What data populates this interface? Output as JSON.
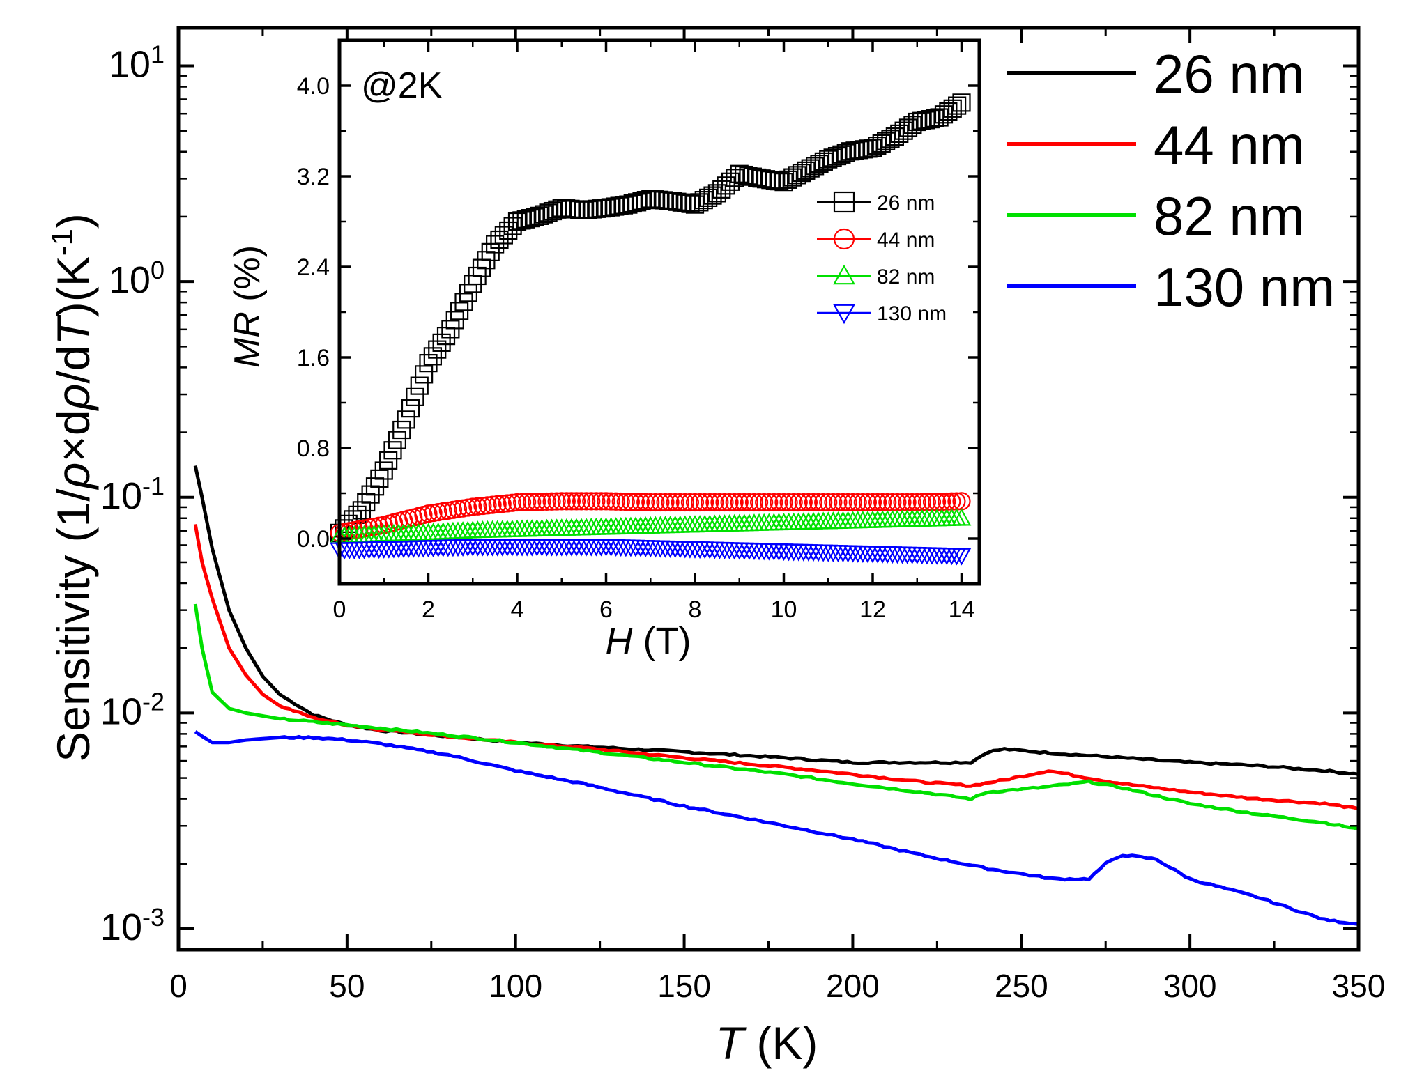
{
  "chart_data": [
    {
      "type": "line",
      "title": "",
      "xlabel": "T (K)",
      "xlabel_var": "T",
      "xlabel_unit": " (K)",
      "ylabel": "Sensitivity (1/ρ×dρ/dT)(K-1)",
      "ylabel_parts": [
        "Sensitivity (1/",
        "ρ",
        "×d",
        "ρ",
        "/d",
        "T",
        ")(K",
        "-1",
        ")"
      ],
      "xlim": [
        0,
        350
      ],
      "ylim": [
        0.0008,
        15
      ],
      "yscale": "log",
      "xticks": [
        0,
        50,
        100,
        150,
        200,
        250,
        300,
        350
      ],
      "yticks": [
        {
          "value": 0.001,
          "base": "10",
          "exp": "-3"
        },
        {
          "value": 0.01,
          "base": "10",
          "exp": "-2"
        },
        {
          "value": 0.1,
          "base": "10",
          "exp": "-1"
        },
        {
          "value": 1,
          "base": "10",
          "exp": "0"
        },
        {
          "value": 10,
          "base": "10",
          "exp": "1"
        }
      ],
      "legend_position": "top-right (outside plot)",
      "series": [
        {
          "name": "26 nm",
          "color": "#000000",
          "x": [
            5,
            7,
            10,
            15,
            20,
            25,
            30,
            40,
            50,
            60,
            80,
            100,
            120,
            150,
            180,
            200,
            220,
            235,
            240,
            245,
            260,
            280,
            300,
            320,
            340,
            350
          ],
          "y": [
            0.14,
            0.1,
            0.058,
            0.03,
            0.02,
            0.0148,
            0.0122,
            0.0098,
            0.0088,
            0.0083,
            0.0078,
            0.0073,
            0.007,
            0.0066,
            0.0062,
            0.0059,
            0.0059,
            0.0059,
            0.0066,
            0.0068,
            0.0065,
            0.0062,
            0.0059,
            0.0057,
            0.0054,
            0.0052
          ]
        },
        {
          "name": "44 nm",
          "color": "#ff0000",
          "x": [
            5,
            7,
            10,
            15,
            20,
            25,
            30,
            40,
            50,
            60,
            80,
            100,
            120,
            150,
            180,
            200,
            220,
            235,
            245,
            258,
            270,
            280,
            300,
            320,
            340,
            350
          ],
          "y": [
            0.075,
            0.05,
            0.034,
            0.02,
            0.015,
            0.0122,
            0.0108,
            0.0095,
            0.0088,
            0.0084,
            0.0078,
            0.0073,
            0.0069,
            0.0062,
            0.0056,
            0.0052,
            0.0048,
            0.0046,
            0.0049,
            0.0054,
            0.005,
            0.0047,
            0.0043,
            0.004,
            0.0038,
            0.0036
          ]
        },
        {
          "name": "82 nm",
          "color": "#00e000",
          "x": [
            5,
            7,
            10,
            15,
            20,
            25,
            30,
            40,
            50,
            60,
            80,
            100,
            120,
            150,
            180,
            200,
            220,
            235,
            240,
            255,
            270,
            280,
            300,
            320,
            340,
            350
          ],
          "y": [
            0.032,
            0.02,
            0.0125,
            0.0105,
            0.01,
            0.0097,
            0.0094,
            0.0091,
            0.0088,
            0.0085,
            0.0079,
            0.0073,
            0.0067,
            0.0059,
            0.0052,
            0.0047,
            0.0043,
            0.004,
            0.0043,
            0.0045,
            0.0048,
            0.0045,
            0.0038,
            0.0034,
            0.0031,
            0.0029
          ]
        },
        {
          "name": "130 nm",
          "color": "#0000ff",
          "x": [
            5,
            7,
            10,
            15,
            20,
            30,
            40,
            50,
            60,
            80,
            100,
            120,
            150,
            180,
            200,
            220,
            240,
            260,
            270,
            275,
            280,
            290,
            300,
            320,
            340,
            350
          ],
          "y": [
            0.0082,
            0.0078,
            0.0073,
            0.0073,
            0.0075,
            0.0077,
            0.0077,
            0.0075,
            0.0072,
            0.0064,
            0.0054,
            0.0047,
            0.0037,
            0.003,
            0.0026,
            0.0022,
            0.0019,
            0.0017,
            0.0017,
            0.002,
            0.0022,
            0.0021,
            0.0017,
            0.0014,
            0.0011,
            0.00105
          ]
        }
      ]
    },
    {
      "type": "scatter",
      "title": "",
      "annotation": "@2K",
      "xlabel": "H (T)",
      "xlabel_var": "H",
      "xlabel_unit": " (T)",
      "ylabel": "MR (%)",
      "ylabel_var": "MR",
      "ylabel_unit": " (%)",
      "xlim": [
        0,
        14.4
      ],
      "ylim": [
        -0.4,
        4.4
      ],
      "xticks": [
        0,
        2,
        4,
        6,
        8,
        10,
        12,
        14
      ],
      "yticks": [
        "0.0",
        "0.8",
        "1.6",
        "2.4",
        "3.2",
        "4.0"
      ],
      "legend_position": "right-middle (inside inset)",
      "series": [
        {
          "name": "26 nm",
          "color": "#000000",
          "marker": "square",
          "x": [
            0,
            0.5,
            1,
            1.5,
            2,
            2.5,
            3,
            3.5,
            4,
            4.5,
            5,
            5.5,
            6,
            6.5,
            7,
            7.5,
            8,
            8.5,
            9,
            9.5,
            10,
            10.5,
            11,
            11.5,
            12,
            12.5,
            13,
            13.5,
            14
          ],
          "y": [
            0.05,
            0.25,
            0.6,
            1.05,
            1.55,
            1.85,
            2.25,
            2.6,
            2.8,
            2.85,
            2.92,
            2.9,
            2.92,
            2.95,
            3.0,
            2.98,
            2.95,
            3.05,
            3.22,
            3.18,
            3.15,
            3.25,
            3.35,
            3.42,
            3.45,
            3.55,
            3.68,
            3.72,
            3.85
          ]
        },
        {
          "name": "44 nm",
          "color": "#ff0000",
          "marker": "circle",
          "x": [
            0,
            1,
            2,
            3,
            4,
            5,
            6,
            7,
            8,
            9,
            10,
            11,
            12,
            13,
            14
          ],
          "y": [
            0.05,
            0.12,
            0.22,
            0.28,
            0.32,
            0.33,
            0.33,
            0.32,
            0.32,
            0.32,
            0.32,
            0.32,
            0.32,
            0.32,
            0.33
          ]
        },
        {
          "name": "82 nm",
          "color": "#00e000",
          "marker": "triangle-up",
          "x": [
            0,
            1,
            2,
            3,
            4,
            5,
            6,
            7,
            8,
            9,
            10,
            11,
            12,
            13,
            14
          ],
          "y": [
            0.02,
            0.04,
            0.05,
            0.07,
            0.08,
            0.09,
            0.1,
            0.11,
            0.12,
            0.13,
            0.14,
            0.15,
            0.16,
            0.17,
            0.18
          ]
        },
        {
          "name": "130 nm",
          "color": "#0000ff",
          "marker": "triangle-down",
          "x": [
            0,
            1,
            2,
            3,
            4,
            5,
            6,
            7,
            8,
            9,
            10,
            11,
            12,
            13,
            14
          ],
          "y": [
            -0.1,
            -0.09,
            -0.08,
            -0.07,
            -0.07,
            -0.07,
            -0.07,
            -0.08,
            -0.09,
            -0.1,
            -0.11,
            -0.12,
            -0.13,
            -0.14,
            -0.15
          ]
        }
      ]
    }
  ]
}
